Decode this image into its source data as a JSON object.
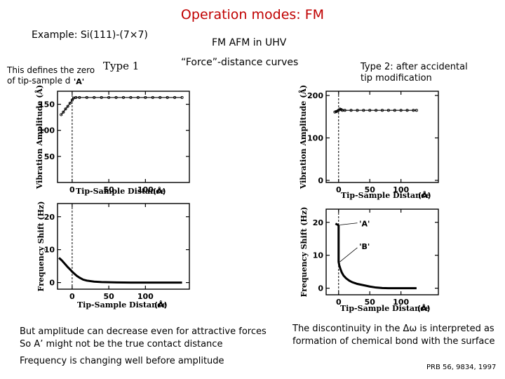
{
  "slide": {
    "title": "Operation modes: FM",
    "subtitle": "Example: Si(111)-(7×7)",
    "setup": "FM AFM in UHV",
    "force_curves": "“Force”-distance curves",
    "type1": "Type 1",
    "zero_note_line1": "This defines the zero",
    "zero_note_line2": "of tip-sample d",
    "type2_line1": "Type 2: after accidental",
    "type2_line2": "tip modification",
    "caption1_line1": "But amplitude can decrease even for attractive forces",
    "caption1_line2": "So A’ might not be the true contact distance",
    "caption1_line3": "Frequency is changing well before amplitude",
    "caption2_line1": "The discontinuity in the Δω is interpreted as",
    "caption2_line2": "formation of chemical bond with the surface",
    "reference": "PRB 56, 9834, 1997"
  },
  "chart_data": [
    {
      "type": "scatter",
      "panel": "left-top",
      "xlabel": "Tip-Sample Distance",
      "xunit": "(Å)",
      "ylabel": "Vibration Amplitude",
      "yunit": "(Å)",
      "xticks": [
        "0",
        "50",
        "100"
      ],
      "yticks": [
        "50",
        "100",
        "150"
      ],
      "xlim": [
        -20,
        160
      ],
      "ylim": [
        0,
        175
      ],
      "marker_label": "'A'",
      "marker_x": 0,
      "series": [
        {
          "x": [
            -15,
            -12,
            -9,
            -6,
            -3,
            0,
            2,
            5,
            10,
            20,
            30,
            40,
            50,
            60,
            70,
            80,
            90,
            100,
            110,
            120,
            130,
            140,
            150
          ],
          "y": [
            130,
            135,
            141,
            146,
            152,
            158,
            162,
            163,
            163,
            163,
            163,
            163,
            163,
            163,
            163,
            163,
            163,
            163,
            163,
            163,
            163,
            163,
            163
          ]
        }
      ]
    },
    {
      "type": "line",
      "panel": "left-bottom",
      "xlabel": "Tip-Sample Distance",
      "xunit": "(Å)",
      "ylabel": "Frequency Shift",
      "yunit": "(Hz)",
      "xticks": [
        "0",
        "50",
        "100"
      ],
      "yticks": [
        "0",
        "10",
        "20"
      ],
      "xlim": [
        -20,
        160
      ],
      "ylim": [
        -2,
        24
      ],
      "series": [
        {
          "x": [
            -18,
            -14,
            -10,
            -6,
            -2,
            0,
            3,
            6,
            10,
            15,
            20,
            30,
            40,
            60,
            80,
            100,
            120,
            140,
            150
          ],
          "y": [
            7.5,
            6.7,
            5.7,
            4.7,
            3.8,
            3.3,
            2.7,
            2.1,
            1.5,
            0.9,
            0.6,
            0.3,
            0.15,
            0.05,
            0,
            0,
            0,
            0,
            0
          ]
        }
      ]
    },
    {
      "type": "scatter",
      "panel": "right-top",
      "xlabel": "Tip-Sample Distance",
      "xunit": "(Å)",
      "ylabel": "Vibration Amplitude",
      "yunit": "(Å)",
      "xticks": [
        "0",
        "50",
        "100"
      ],
      "yticks": [
        "0",
        "100",
        "200"
      ],
      "xlim": [
        -20,
        160
      ],
      "ylim": [
        -5,
        210
      ],
      "marker_x": 0,
      "series": [
        {
          "x": [
            -6,
            -4,
            -2,
            0,
            2,
            4,
            6,
            10,
            20,
            30,
            40,
            50,
            60,
            70,
            80,
            90,
            100,
            110,
            120,
            125
          ],
          "y": [
            161,
            162,
            163,
            165,
            168,
            167,
            165,
            165,
            165,
            165,
            165,
            165,
            165,
            165,
            165,
            165,
            165,
            165,
            165,
            165
          ]
        }
      ]
    },
    {
      "type": "line",
      "panel": "right-bottom",
      "xlabel": "Tip-Sample Distance",
      "xunit": "(Å)",
      "ylabel": "Frequency Shift",
      "yunit": "(Hz)",
      "xticks": [
        "0",
        "50",
        "100"
      ],
      "yticks": [
        "0",
        "10",
        "20"
      ],
      "xlim": [
        -20,
        160
      ],
      "ylim": [
        -2,
        24
      ],
      "annotations": [
        "'A'",
        "'B'"
      ],
      "series": [
        {
          "x": [
            -5,
            -3,
            -1,
            0,
            0,
            1,
            3,
            5,
            8,
            12,
            17,
            22,
            30,
            40,
            50,
            60,
            70,
            80,
            90,
            100,
            110,
            120,
            125
          ],
          "y": [
            19.6,
            19.4,
            19.2,
            19.0,
            8.0,
            7.0,
            5.8,
            4.8,
            3.8,
            3.0,
            2.3,
            1.8,
            1.3,
            0.9,
            0.5,
            0.2,
            0.05,
            0,
            0,
            0,
            0,
            0,
            0
          ]
        }
      ]
    }
  ]
}
